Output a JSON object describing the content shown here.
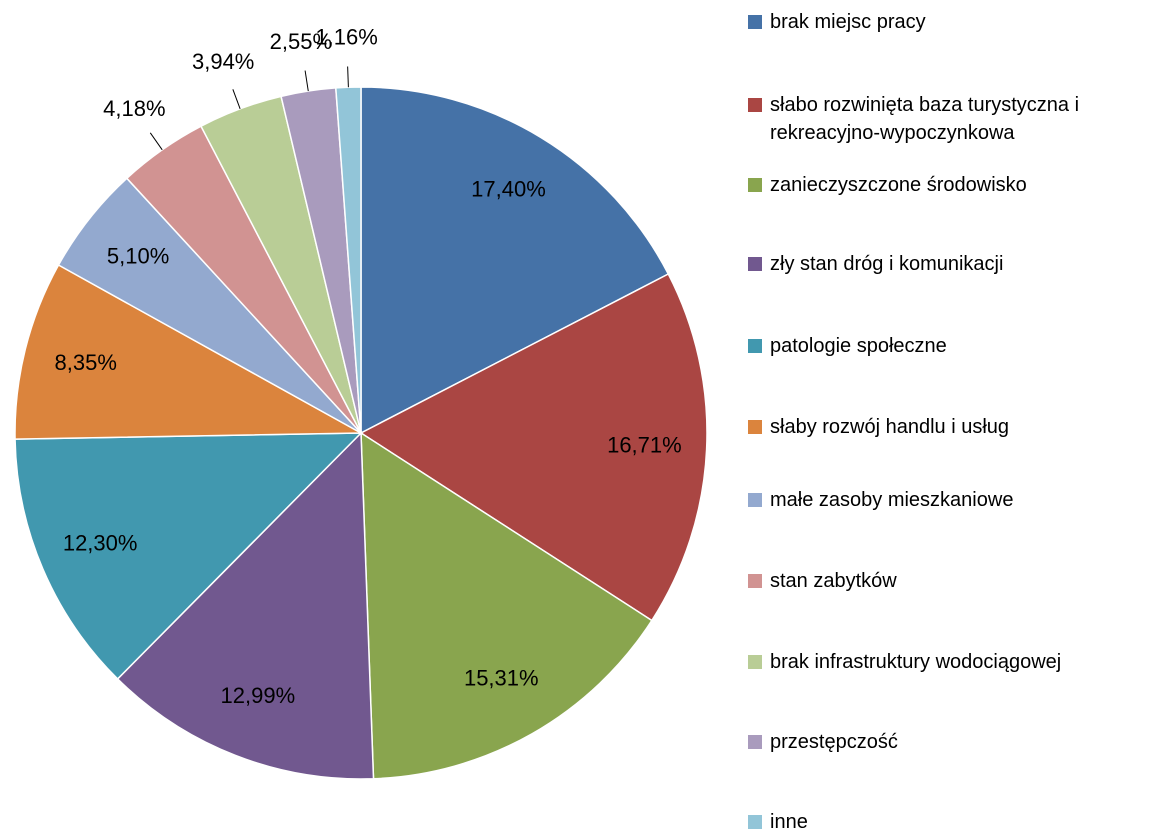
{
  "chart_data": {
    "type": "pie",
    "categories": [
      "brak miejsc pracy",
      "słabo rozwinięta baza turystyczna i rekreacyjno-wypoczynkowa",
      "zanieczyszczone środowisko",
      "zły stan dróg i komunikacji",
      "patologie społeczne",
      "słaby rozwój handlu i usług",
      "małe zasoby mieszkaniowe",
      "stan zabytków",
      "brak infrastruktury wodociągowej",
      "przestępczość",
      "inne"
    ],
    "values": [
      17.4,
      16.71,
      15.31,
      12.99,
      12.3,
      8.35,
      5.1,
      4.18,
      3.94,
      2.55,
      1.16
    ],
    "value_labels": [
      "17,40%",
      "16,71%",
      "15,31%",
      "12,99%",
      "12,30%",
      "8,35%",
      "5,10%",
      "4,18%",
      "3,94%",
      "2,55%",
      "1,16%"
    ],
    "colors": [
      "#4572a7",
      "#aa4643",
      "#89a54e",
      "#71588f",
      "#4198af",
      "#db843d",
      "#93a9cf",
      "#d19392",
      "#b9cd96",
      "#a99bbd",
      "#92c5d8"
    ],
    "legend": "right"
  }
}
